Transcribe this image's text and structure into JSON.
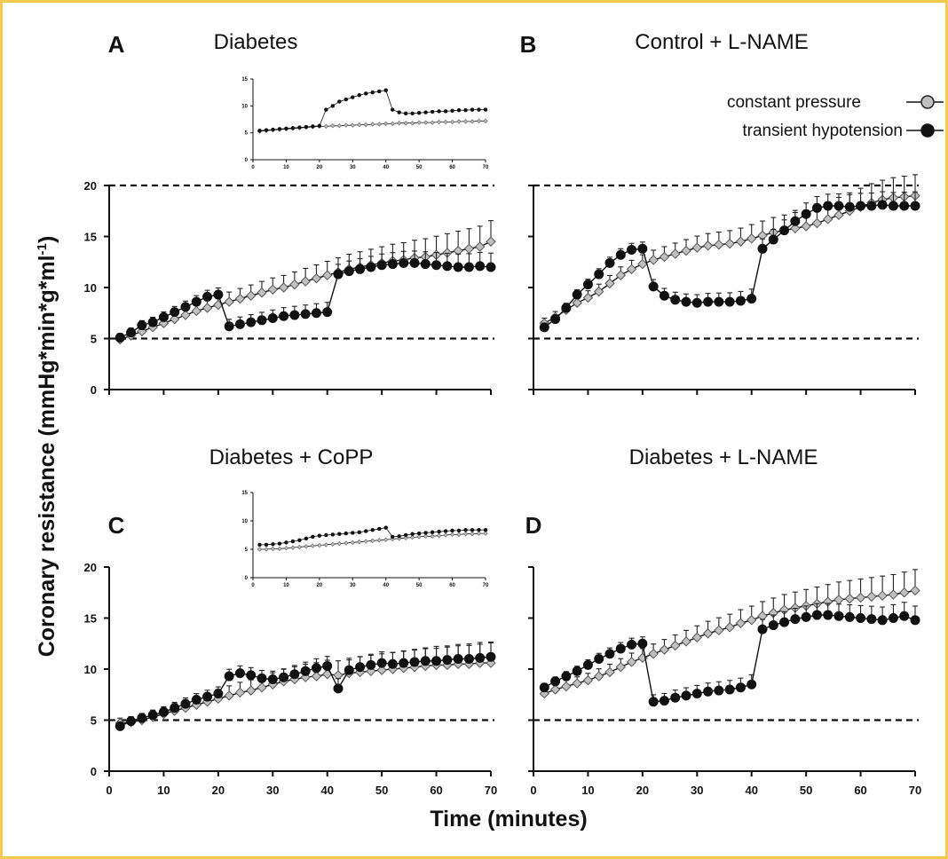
{
  "figure": {
    "ylabel_main": "Coronary resistance (mmHg*min*g*ml",
    "ylabel_sup": "-1",
    "ylabel_end": ")",
    "xlabel": "Time (minutes)",
    "legend": {
      "constant": "constant pressure",
      "transient": "transient hypotension",
      "placement": "top-right"
    },
    "colors": {
      "constant_fill": "#c0c0c0",
      "transient_fill": "#111111",
      "reference_line": "#111111"
    }
  },
  "chart_data": [
    {
      "panel": "A",
      "type": "line",
      "title": "Diabetes",
      "xlim": [
        0,
        70
      ],
      "ylim": [
        0,
        20
      ],
      "xticks": [
        0,
        10,
        20,
        30,
        40,
        50,
        60,
        70
      ],
      "yticks": [
        0,
        5,
        10,
        15,
        20
      ],
      "show_x_tick_labels": false,
      "show_y_tick_labels": true,
      "reference_lines": [
        5,
        20
      ],
      "x": [
        2,
        4,
        6,
        8,
        10,
        12,
        14,
        16,
        18,
        20,
        22,
        24,
        26,
        28,
        30,
        32,
        34,
        36,
        38,
        40,
        42,
        44,
        46,
        48,
        50,
        52,
        54,
        56,
        58,
        60,
        62,
        64,
        66,
        68,
        70
      ],
      "series": [
        {
          "name": "constant pressure",
          "values": [
            4.9,
            5.3,
            5.7,
            6.1,
            6.5,
            6.9,
            7.3,
            7.7,
            8.0,
            8.3,
            8.6,
            8.9,
            9.2,
            9.5,
            9.8,
            10.0,
            10.3,
            10.6,
            10.9,
            11.2,
            11.5,
            11.8,
            12.0,
            12.2,
            12.4,
            12.6,
            12.7,
            12.9,
            13.0,
            13.2,
            13.4,
            13.6,
            13.8,
            14.0,
            14.5
          ]
        },
        {
          "name": "transient hypotension",
          "values": [
            5.1,
            5.6,
            6.3,
            6.6,
            7.1,
            7.6,
            8.1,
            8.6,
            9.1,
            9.3,
            6.2,
            6.4,
            6.6,
            6.8,
            7.0,
            7.2,
            7.3,
            7.4,
            7.5,
            7.6,
            11.3,
            11.6,
            11.8,
            12.0,
            12.2,
            12.3,
            12.4,
            12.4,
            12.3,
            12.2,
            12.1,
            12.0,
            12.0,
            12.1,
            12.0
          ]
        }
      ],
      "inset": {
        "xlim": [
          0,
          70
        ],
        "ylim": [
          0,
          15
        ],
        "xticks": [
          0,
          10,
          20,
          30,
          40,
          50,
          60,
          70
        ],
        "yticks": [
          0,
          5,
          10,
          15
        ],
        "x": [
          2,
          4,
          6,
          8,
          10,
          12,
          14,
          16,
          18,
          20,
          22,
          24,
          26,
          28,
          30,
          32,
          34,
          36,
          38,
          40,
          42,
          44,
          46,
          48,
          50,
          52,
          54,
          56,
          58,
          60,
          62,
          64,
          66,
          68,
          70
        ],
        "series": [
          {
            "name": "constant pressure",
            "values": [
              5.3,
              5.4,
              5.5,
              5.6,
              5.7,
              5.8,
              5.9,
              6.0,
              6.1,
              6.2,
              6.2,
              6.3,
              6.3,
              6.4,
              6.4,
              6.5,
              6.5,
              6.6,
              6.6,
              6.7,
              6.7,
              6.8,
              6.8,
              6.8,
              6.9,
              6.9,
              6.9,
              7.0,
              7.0,
              7.0,
              7.1,
              7.1,
              7.1,
              7.2,
              7.2
            ]
          },
          {
            "name": "transient hypotension",
            "values": [
              5.4,
              5.5,
              5.6,
              5.7,
              5.8,
              5.9,
              6.0,
              6.1,
              6.2,
              6.3,
              9.3,
              10.0,
              10.8,
              11.2,
              11.6,
              12.0,
              12.3,
              12.5,
              12.7,
              12.9,
              9.3,
              8.8,
              8.6,
              8.6,
              8.7,
              8.8,
              8.9,
              9.0,
              9.0,
              9.1,
              9.2,
              9.2,
              9.3,
              9.3,
              9.3
            ]
          }
        ]
      }
    },
    {
      "panel": "B",
      "type": "line",
      "title": "Control + L-NAME",
      "xlim": [
        0,
        70
      ],
      "ylim": [
        0,
        20
      ],
      "xticks": [
        0,
        10,
        20,
        30,
        40,
        50,
        60,
        70
      ],
      "yticks": [
        0,
        5,
        10,
        15,
        20
      ],
      "show_x_tick_labels": false,
      "show_y_tick_labels": false,
      "reference_lines": [
        5,
        20
      ],
      "x": [
        2,
        4,
        6,
        8,
        10,
        12,
        14,
        16,
        18,
        20,
        22,
        24,
        26,
        28,
        30,
        32,
        34,
        36,
        38,
        40,
        42,
        44,
        46,
        48,
        50,
        52,
        54,
        56,
        58,
        60,
        62,
        64,
        66,
        68,
        70
      ],
      "series": [
        {
          "name": "constant pressure",
          "values": [
            6.5,
            7.1,
            7.8,
            8.5,
            9.0,
            9.6,
            10.4,
            11.2,
            11.8,
            12.3,
            12.7,
            13.0,
            13.3,
            13.6,
            13.9,
            14.1,
            14.2,
            14.3,
            14.5,
            14.8,
            15.1,
            15.4,
            15.6,
            15.8,
            16.0,
            16.3,
            16.7,
            17.1,
            17.5,
            17.9,
            18.3,
            18.6,
            18.8,
            18.9,
            19.0
          ]
        },
        {
          "name": "transient hypotension",
          "values": [
            6.1,
            6.9,
            8.0,
            9.3,
            10.3,
            11.3,
            12.4,
            13.2,
            13.7,
            13.8,
            10.1,
            9.2,
            8.8,
            8.6,
            8.5,
            8.6,
            8.6,
            8.6,
            8.7,
            8.9,
            13.8,
            14.7,
            15.6,
            16.5,
            17.2,
            17.8,
            18.0,
            18.0,
            17.9,
            18.0,
            18.0,
            18.1,
            18.0,
            18.0,
            18.0
          ]
        }
      ]
    },
    {
      "panel": "C",
      "type": "line",
      "title": "Diabetes + CoPP",
      "xlim": [
        0,
        70
      ],
      "ylim": [
        0,
        20
      ],
      "xticks": [
        0,
        10,
        20,
        30,
        40,
        50,
        60,
        70
      ],
      "yticks": [
        0,
        5,
        10,
        15,
        20
      ],
      "show_x_tick_labels": true,
      "show_y_tick_labels": true,
      "reference_lines": [
        5
      ],
      "x": [
        2,
        4,
        6,
        8,
        10,
        12,
        14,
        16,
        18,
        20,
        22,
        24,
        26,
        28,
        30,
        32,
        34,
        36,
        38,
        40,
        42,
        44,
        46,
        48,
        50,
        52,
        54,
        56,
        58,
        60,
        62,
        64,
        66,
        68,
        70
      ],
      "series": [
        {
          "name": "constant pressure",
          "values": [
            4.7,
            4.8,
            5.0,
            5.3,
            5.6,
            5.9,
            6.2,
            6.5,
            6.8,
            7.1,
            7.4,
            7.7,
            7.9,
            8.2,
            8.5,
            8.8,
            9.0,
            9.2,
            9.3,
            9.5,
            9.4,
            9.6,
            9.7,
            9.8,
            9.9,
            10.0,
            10.1,
            10.2,
            10.3,
            10.4,
            10.4,
            10.5,
            10.5,
            10.6,
            10.6
          ]
        },
        {
          "name": "transient hypotension",
          "values": [
            4.4,
            4.9,
            5.2,
            5.5,
            5.8,
            6.2,
            6.6,
            7.0,
            7.3,
            7.6,
            9.3,
            9.6,
            9.4,
            9.1,
            9.0,
            9.2,
            9.5,
            9.8,
            10.1,
            10.3,
            8.1,
            9.9,
            10.2,
            10.4,
            10.6,
            10.5,
            10.6,
            10.7,
            10.8,
            10.8,
            10.9,
            11.0,
            11.0,
            11.1,
            11.2
          ]
        }
      ],
      "inset": {
        "xlim": [
          0,
          70
        ],
        "ylim": [
          0,
          15
        ],
        "xticks": [
          0,
          10,
          20,
          30,
          40,
          50,
          60,
          70
        ],
        "yticks": [
          0,
          5,
          10,
          15
        ],
        "x": [
          2,
          4,
          6,
          8,
          10,
          12,
          14,
          16,
          18,
          20,
          22,
          24,
          26,
          28,
          30,
          32,
          34,
          36,
          38,
          40,
          42,
          44,
          46,
          48,
          50,
          52,
          54,
          56,
          58,
          60,
          62,
          64,
          66,
          68,
          70
        ],
        "series": [
          {
            "name": "constant pressure",
            "values": [
              5.0,
              5.0,
              5.1,
              5.1,
              5.2,
              5.3,
              5.4,
              5.5,
              5.6,
              5.7,
              5.8,
              5.9,
              6.0,
              6.1,
              6.2,
              6.3,
              6.4,
              6.5,
              6.6,
              6.7,
              6.8,
              6.9,
              7.0,
              7.1,
              7.2,
              7.3,
              7.3,
              7.4,
              7.5,
              7.6,
              7.6,
              7.7,
              7.7,
              7.8,
              7.8
            ]
          },
          {
            "name": "transient hypotension",
            "values": [
              5.8,
              5.8,
              5.9,
              6.0,
              6.2,
              6.4,
              6.6,
              6.9,
              7.2,
              7.4,
              7.5,
              7.6,
              7.7,
              7.8,
              7.9,
              8.0,
              8.2,
              8.4,
              8.6,
              8.8,
              7.2,
              7.3,
              7.5,
              7.7,
              7.8,
              7.9,
              8.0,
              8.1,
              8.2,
              8.3,
              8.3,
              8.4,
              8.4,
              8.4,
              8.4
            ]
          }
        ]
      }
    },
    {
      "panel": "D",
      "type": "line",
      "title": "Diabetes + L-NAME",
      "xlim": [
        0,
        70
      ],
      "ylim": [
        0,
        20
      ],
      "xticks": [
        0,
        10,
        20,
        30,
        40,
        50,
        60,
        70
      ],
      "yticks": [
        0,
        5,
        10,
        15,
        20
      ],
      "show_x_tick_labels": true,
      "show_y_tick_labels": false,
      "reference_lines": [
        5
      ],
      "x": [
        2,
        4,
        6,
        8,
        10,
        12,
        14,
        16,
        18,
        20,
        22,
        24,
        26,
        28,
        30,
        32,
        34,
        36,
        38,
        40,
        42,
        44,
        46,
        48,
        50,
        52,
        54,
        56,
        58,
        60,
        62,
        64,
        66,
        68,
        70
      ],
      "series": [
        {
          "name": "constant pressure",
          "values": [
            7.6,
            8.0,
            8.3,
            8.6,
            8.9,
            9.3,
            9.7,
            10.2,
            10.7,
            11.1,
            11.5,
            11.9,
            12.3,
            12.7,
            13.1,
            13.5,
            13.8,
            14.1,
            14.5,
            14.8,
            15.2,
            15.5,
            15.8,
            16.0,
            16.2,
            16.4,
            16.6,
            16.8,
            16.9,
            17.0,
            17.1,
            17.2,
            17.3,
            17.5,
            17.7
          ]
        },
        {
          "name": "transient hypotension",
          "values": [
            8.2,
            8.8,
            9.3,
            9.8,
            10.4,
            11.0,
            11.5,
            12.0,
            12.4,
            12.5,
            6.8,
            6.9,
            7.2,
            7.4,
            7.6,
            7.8,
            7.9,
            8.0,
            8.2,
            8.5,
            13.9,
            14.3,
            14.6,
            14.9,
            15.1,
            15.3,
            15.3,
            15.2,
            15.1,
            15.0,
            14.9,
            14.8,
            15.0,
            15.2,
            14.8
          ]
        }
      ]
    }
  ]
}
